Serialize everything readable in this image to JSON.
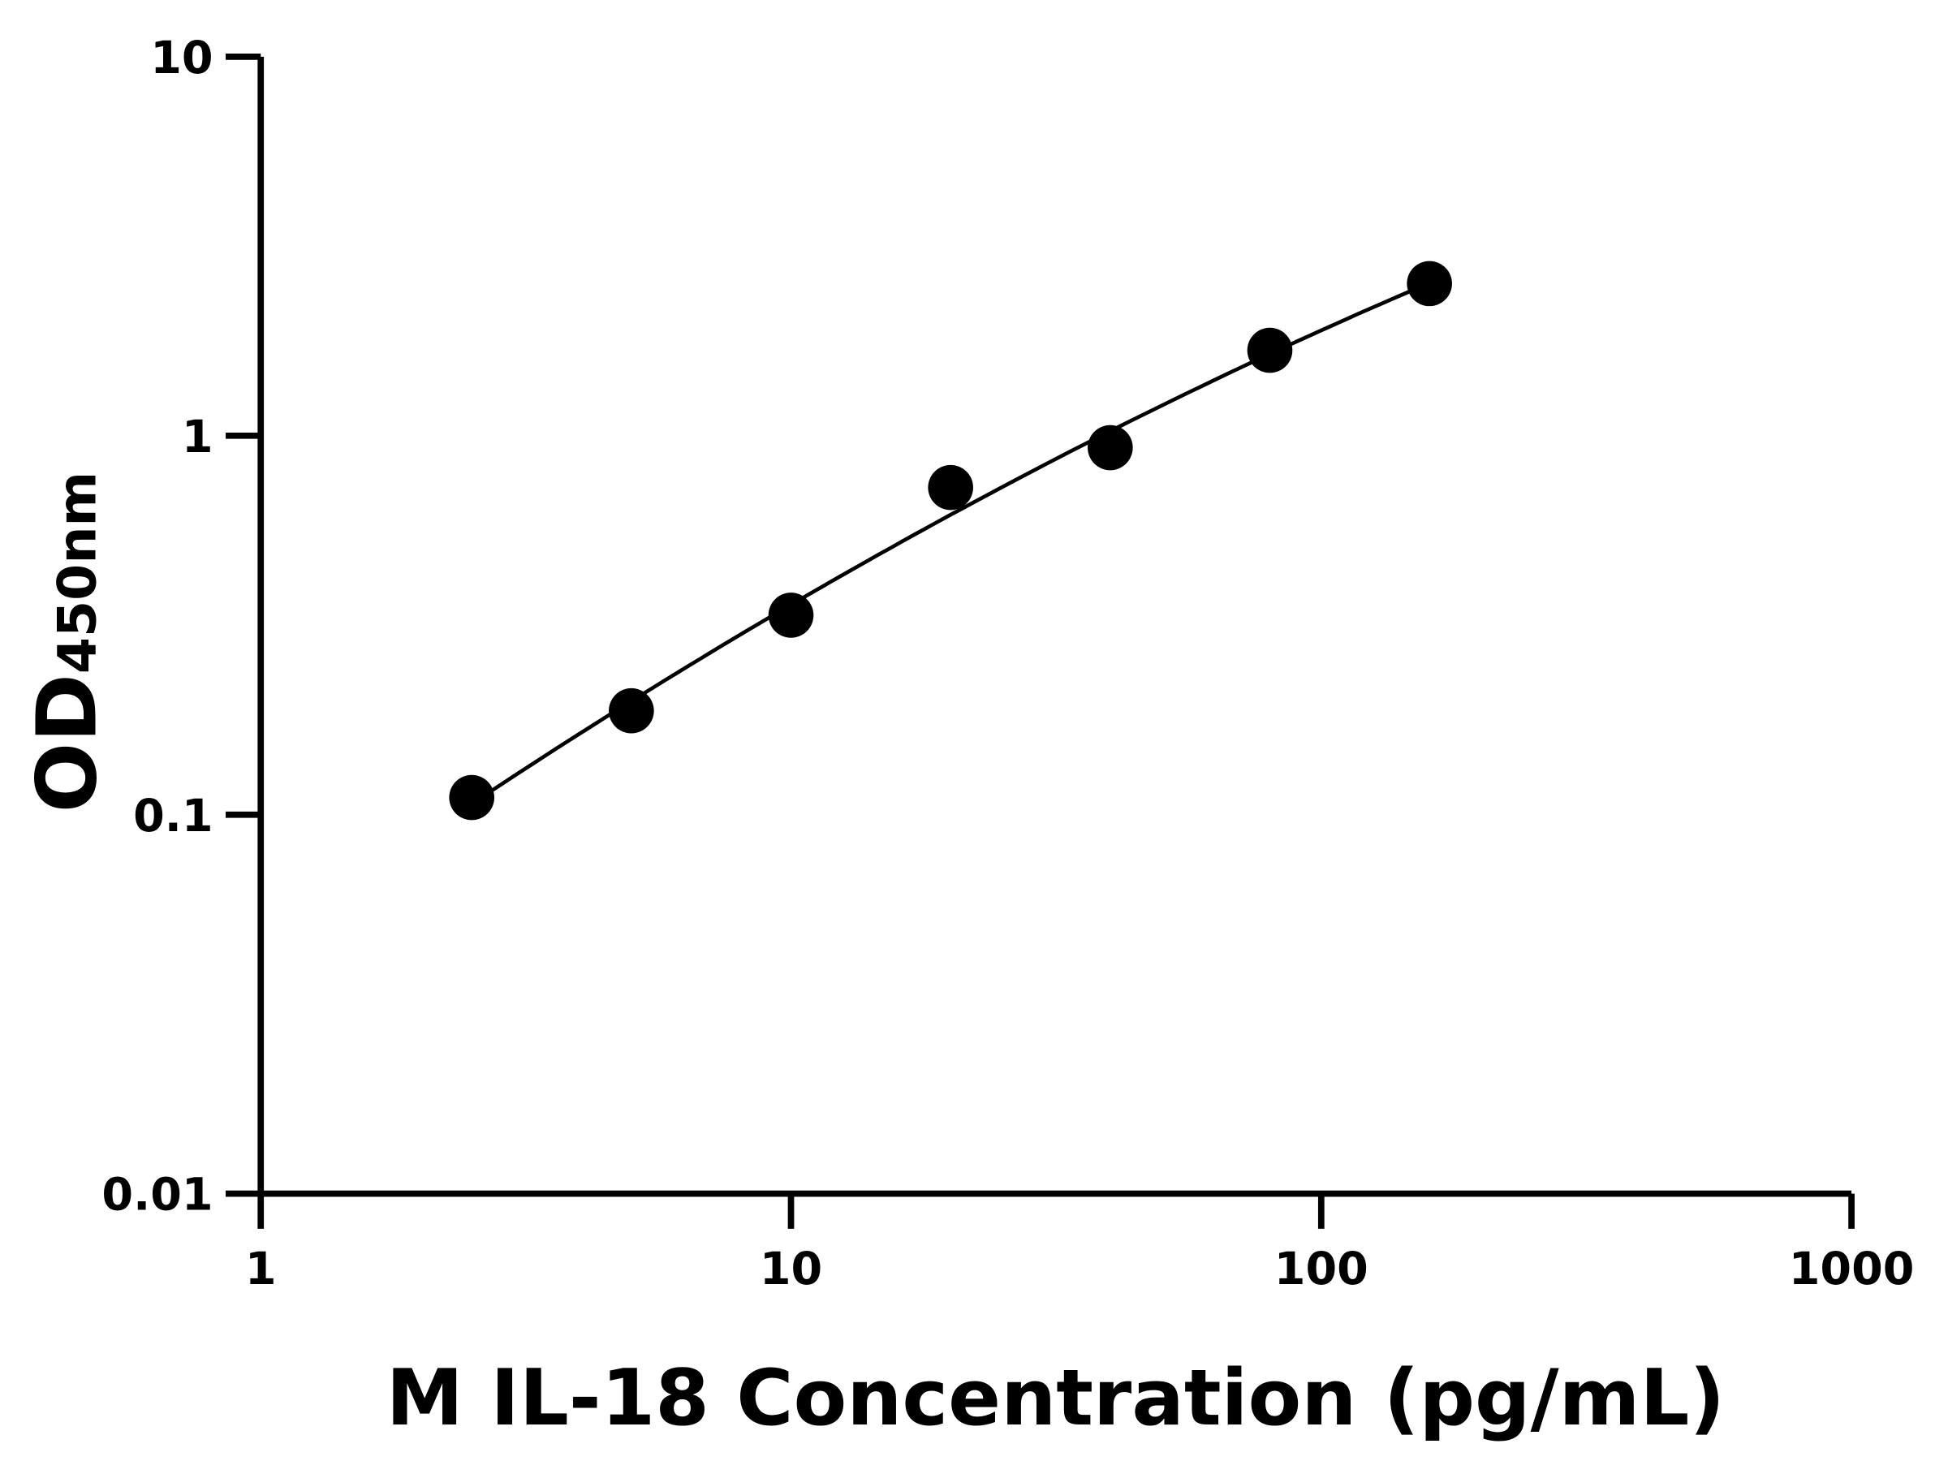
{
  "chart_data": {
    "type": "scatter",
    "title": "",
    "xlabel": "M IL-18 Concentration (pg/mL)",
    "ylabel_main": "OD",
    "ylabel_sub": "450nm",
    "x_scale": "log",
    "y_scale": "log",
    "xlim": [
      1,
      1000
    ],
    "ylim": [
      0.01,
      10
    ],
    "x_ticks": [
      "1",
      "10",
      "100",
      "1000"
    ],
    "y_ticks": [
      "0.01",
      "0.1",
      "1",
      "10"
    ],
    "grid": false,
    "legend": "none",
    "fit_curve": true,
    "marker_color": "#000000",
    "line_color": "#000000",
    "points": [
      {
        "x": 2.5,
        "y": 0.111
      },
      {
        "x": 5,
        "y": 0.188
      },
      {
        "x": 10,
        "y": 0.336
      },
      {
        "x": 20,
        "y": 0.73
      },
      {
        "x": 40,
        "y": 0.93
      },
      {
        "x": 80,
        "y": 1.68
      },
      {
        "x": 160,
        "y": 2.52
      }
    ]
  }
}
